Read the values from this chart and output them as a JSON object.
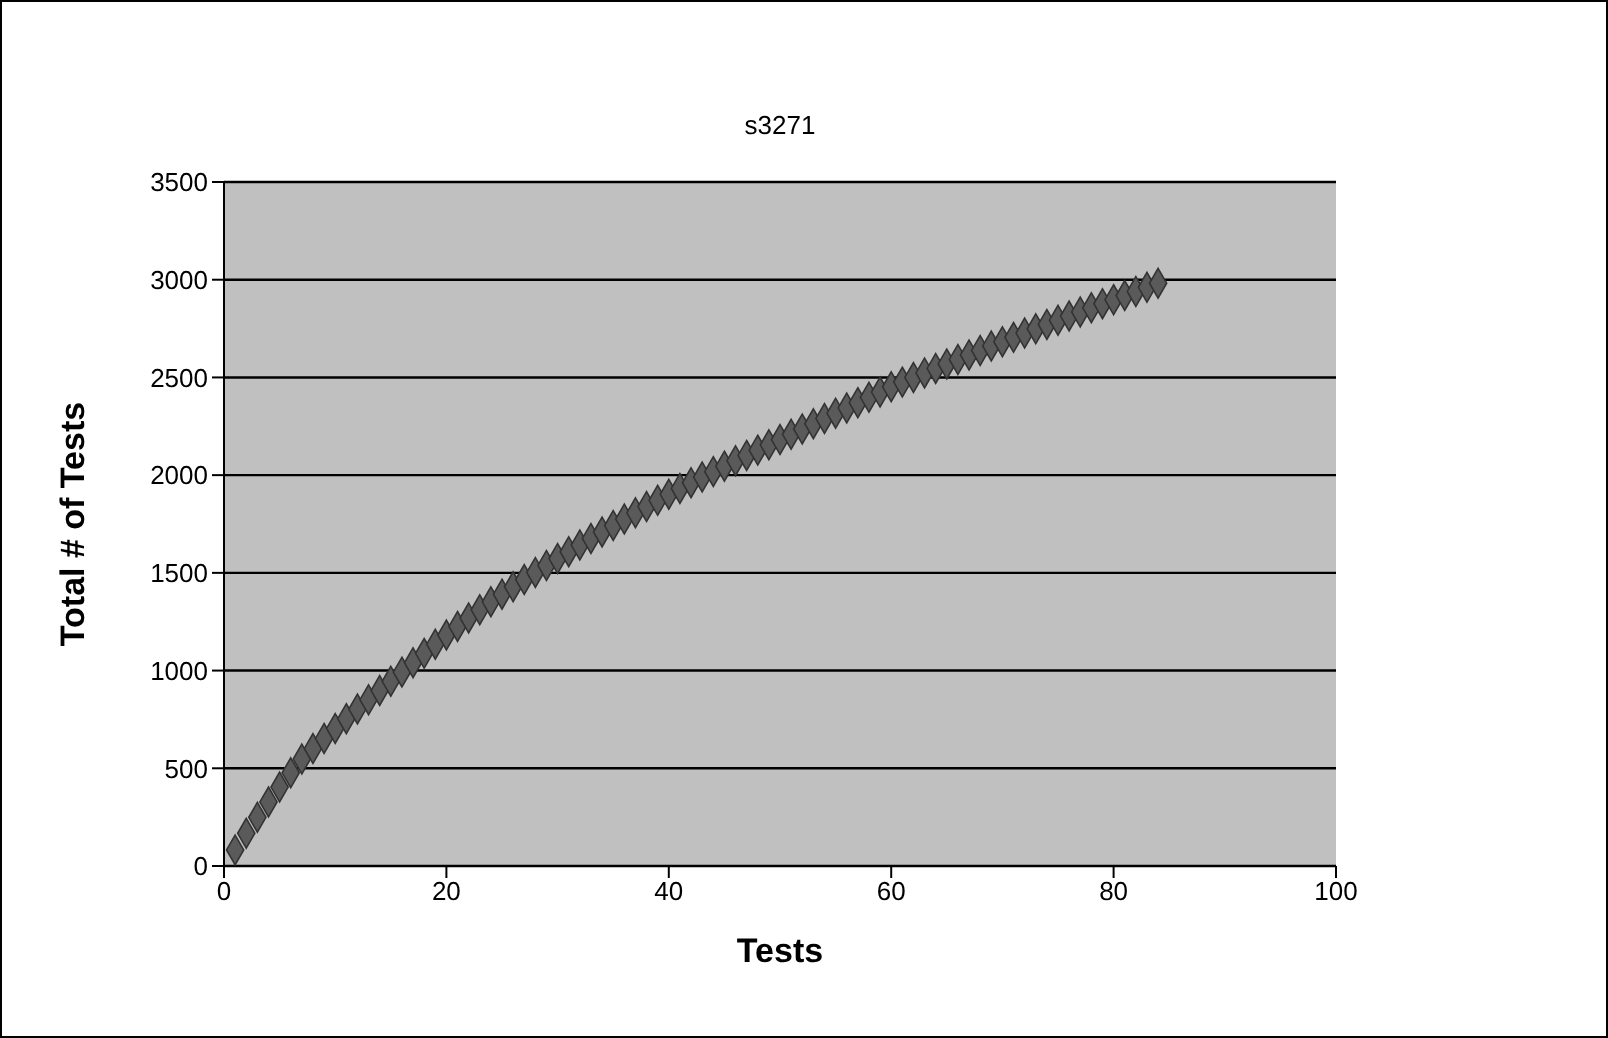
{
  "chart_data": {
    "type": "scatter",
    "title": "s3271",
    "xlabel": "Tests",
    "ylabel": "Total # of Tests",
    "x": [
      1,
      2,
      3,
      4,
      5,
      6,
      7,
      8,
      9,
      10,
      11,
      12,
      13,
      14,
      15,
      16,
      17,
      18,
      19,
      20,
      21,
      22,
      23,
      24,
      25,
      26,
      27,
      28,
      29,
      30,
      31,
      32,
      33,
      34,
      35,
      36,
      37,
      38,
      39,
      40,
      41,
      42,
      43,
      44,
      45,
      46,
      47,
      48,
      49,
      50,
      51,
      52,
      53,
      54,
      55,
      56,
      57,
      58,
      59,
      60,
      61,
      62,
      63,
      64,
      65,
      66,
      67,
      68,
      69,
      70,
      71,
      72,
      73,
      74,
      75,
      76,
      77,
      78,
      79,
      80,
      81,
      82,
      83,
      84
    ],
    "values": [
      82,
      167,
      249,
      328,
      404,
      477,
      547,
      601,
      653,
      704,
      754,
      803,
      851,
      898,
      945,
      992,
      1040,
      1088,
      1135,
      1182,
      1226,
      1269,
      1311,
      1352,
      1391,
      1429,
      1466,
      1502,
      1538,
      1573,
      1608,
      1642,
      1676,
      1709,
      1742,
      1775,
      1807,
      1839,
      1871,
      1902,
      1932,
      1961,
      1990,
      2018,
      2046,
      2074,
      2101,
      2128,
      2155,
      2182,
      2209,
      2236,
      2263,
      2290,
      2317,
      2344,
      2371,
      2398,
      2425,
      2452,
      2476,
      2500,
      2523,
      2546,
      2569,
      2592,
      2615,
      2638,
      2661,
      2683,
      2705,
      2727,
      2749,
      2771,
      2793,
      2814,
      2835,
      2856,
      2877,
      2898,
      2919,
      2940,
      2961,
      2982
    ],
    "color": "#5a5a5a",
    "marker": "diamond",
    "grid": "y",
    "xlim": [
      0,
      100
    ],
    "xticks": [
      0,
      20,
      40,
      60,
      80,
      100
    ],
    "ylim": [
      0,
      3500
    ],
    "yticks": [
      0,
      500,
      1000,
      1500,
      2000,
      2500,
      3000,
      3500
    ]
  }
}
